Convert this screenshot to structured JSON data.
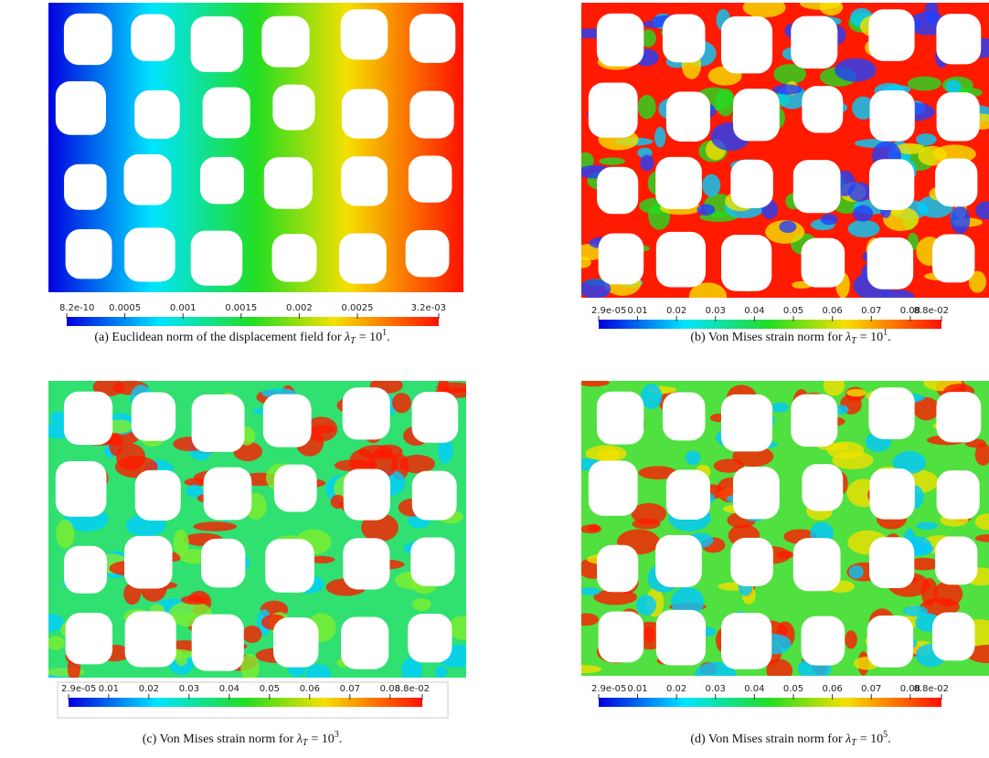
{
  "figure": {
    "panels": [
      {
        "label": "(a)",
        "caption": "Euclidean norm of the displacement field for",
        "symbol": "λ",
        "subscript": "T",
        "relation": "= 10",
        "exponent": "1",
        "end": ".",
        "colorbar": {
          "ticks": [
            {
              "value": 8.2e-10,
              "label": "8.2e-10"
            },
            0.0005,
            0.001,
            0.0015,
            0.002,
            0.0025,
            {
              "value": 0.0032,
              "label": "3.2e-03"
            }
          ]
        }
      },
      {
        "label": "(b)",
        "caption": "Von Mises strain norm for",
        "symbol": "λ",
        "subscript": "T",
        "relation": "= 10",
        "exponent": "1",
        "end": ".",
        "colorbar": {
          "ticks": [
            {
              "value": 2.9e-05,
              "label": "2.9e-05"
            },
            0.01,
            0.02,
            0.03,
            0.04,
            0.05,
            0.06,
            0.07,
            0.08,
            {
              "value": 0.088,
              "label": "8.8e-02"
            }
          ]
        }
      },
      {
        "label": "(c)",
        "caption": "Von Mises strain norm for",
        "symbol": "λ",
        "subscript": "T",
        "relation": "= 10",
        "exponent": "3",
        "end": ".",
        "colorbar": {
          "ticks": [
            {
              "value": 2.9e-05,
              "label": "2.9e-05"
            },
            0.01,
            0.02,
            0.03,
            0.04,
            0.05,
            0.06,
            0.07,
            0.08,
            {
              "value": 0.088,
              "label": "8.8e-02"
            }
          ]
        }
      },
      {
        "label": "(d)",
        "caption": "Von Mises strain norm for",
        "symbol": "λ",
        "subscript": "T",
        "relation": "= 10",
        "exponent": "5",
        "end": ".",
        "colorbar": {
          "ticks": [
            {
              "value": 2.9e-05,
              "label": "2.9e-05"
            },
            0.01,
            0.02,
            0.03,
            0.04,
            0.05,
            0.06,
            0.07,
            0.08,
            {
              "value": 0.088,
              "label": "8.8e-02"
            }
          ]
        }
      }
    ]
  }
}
